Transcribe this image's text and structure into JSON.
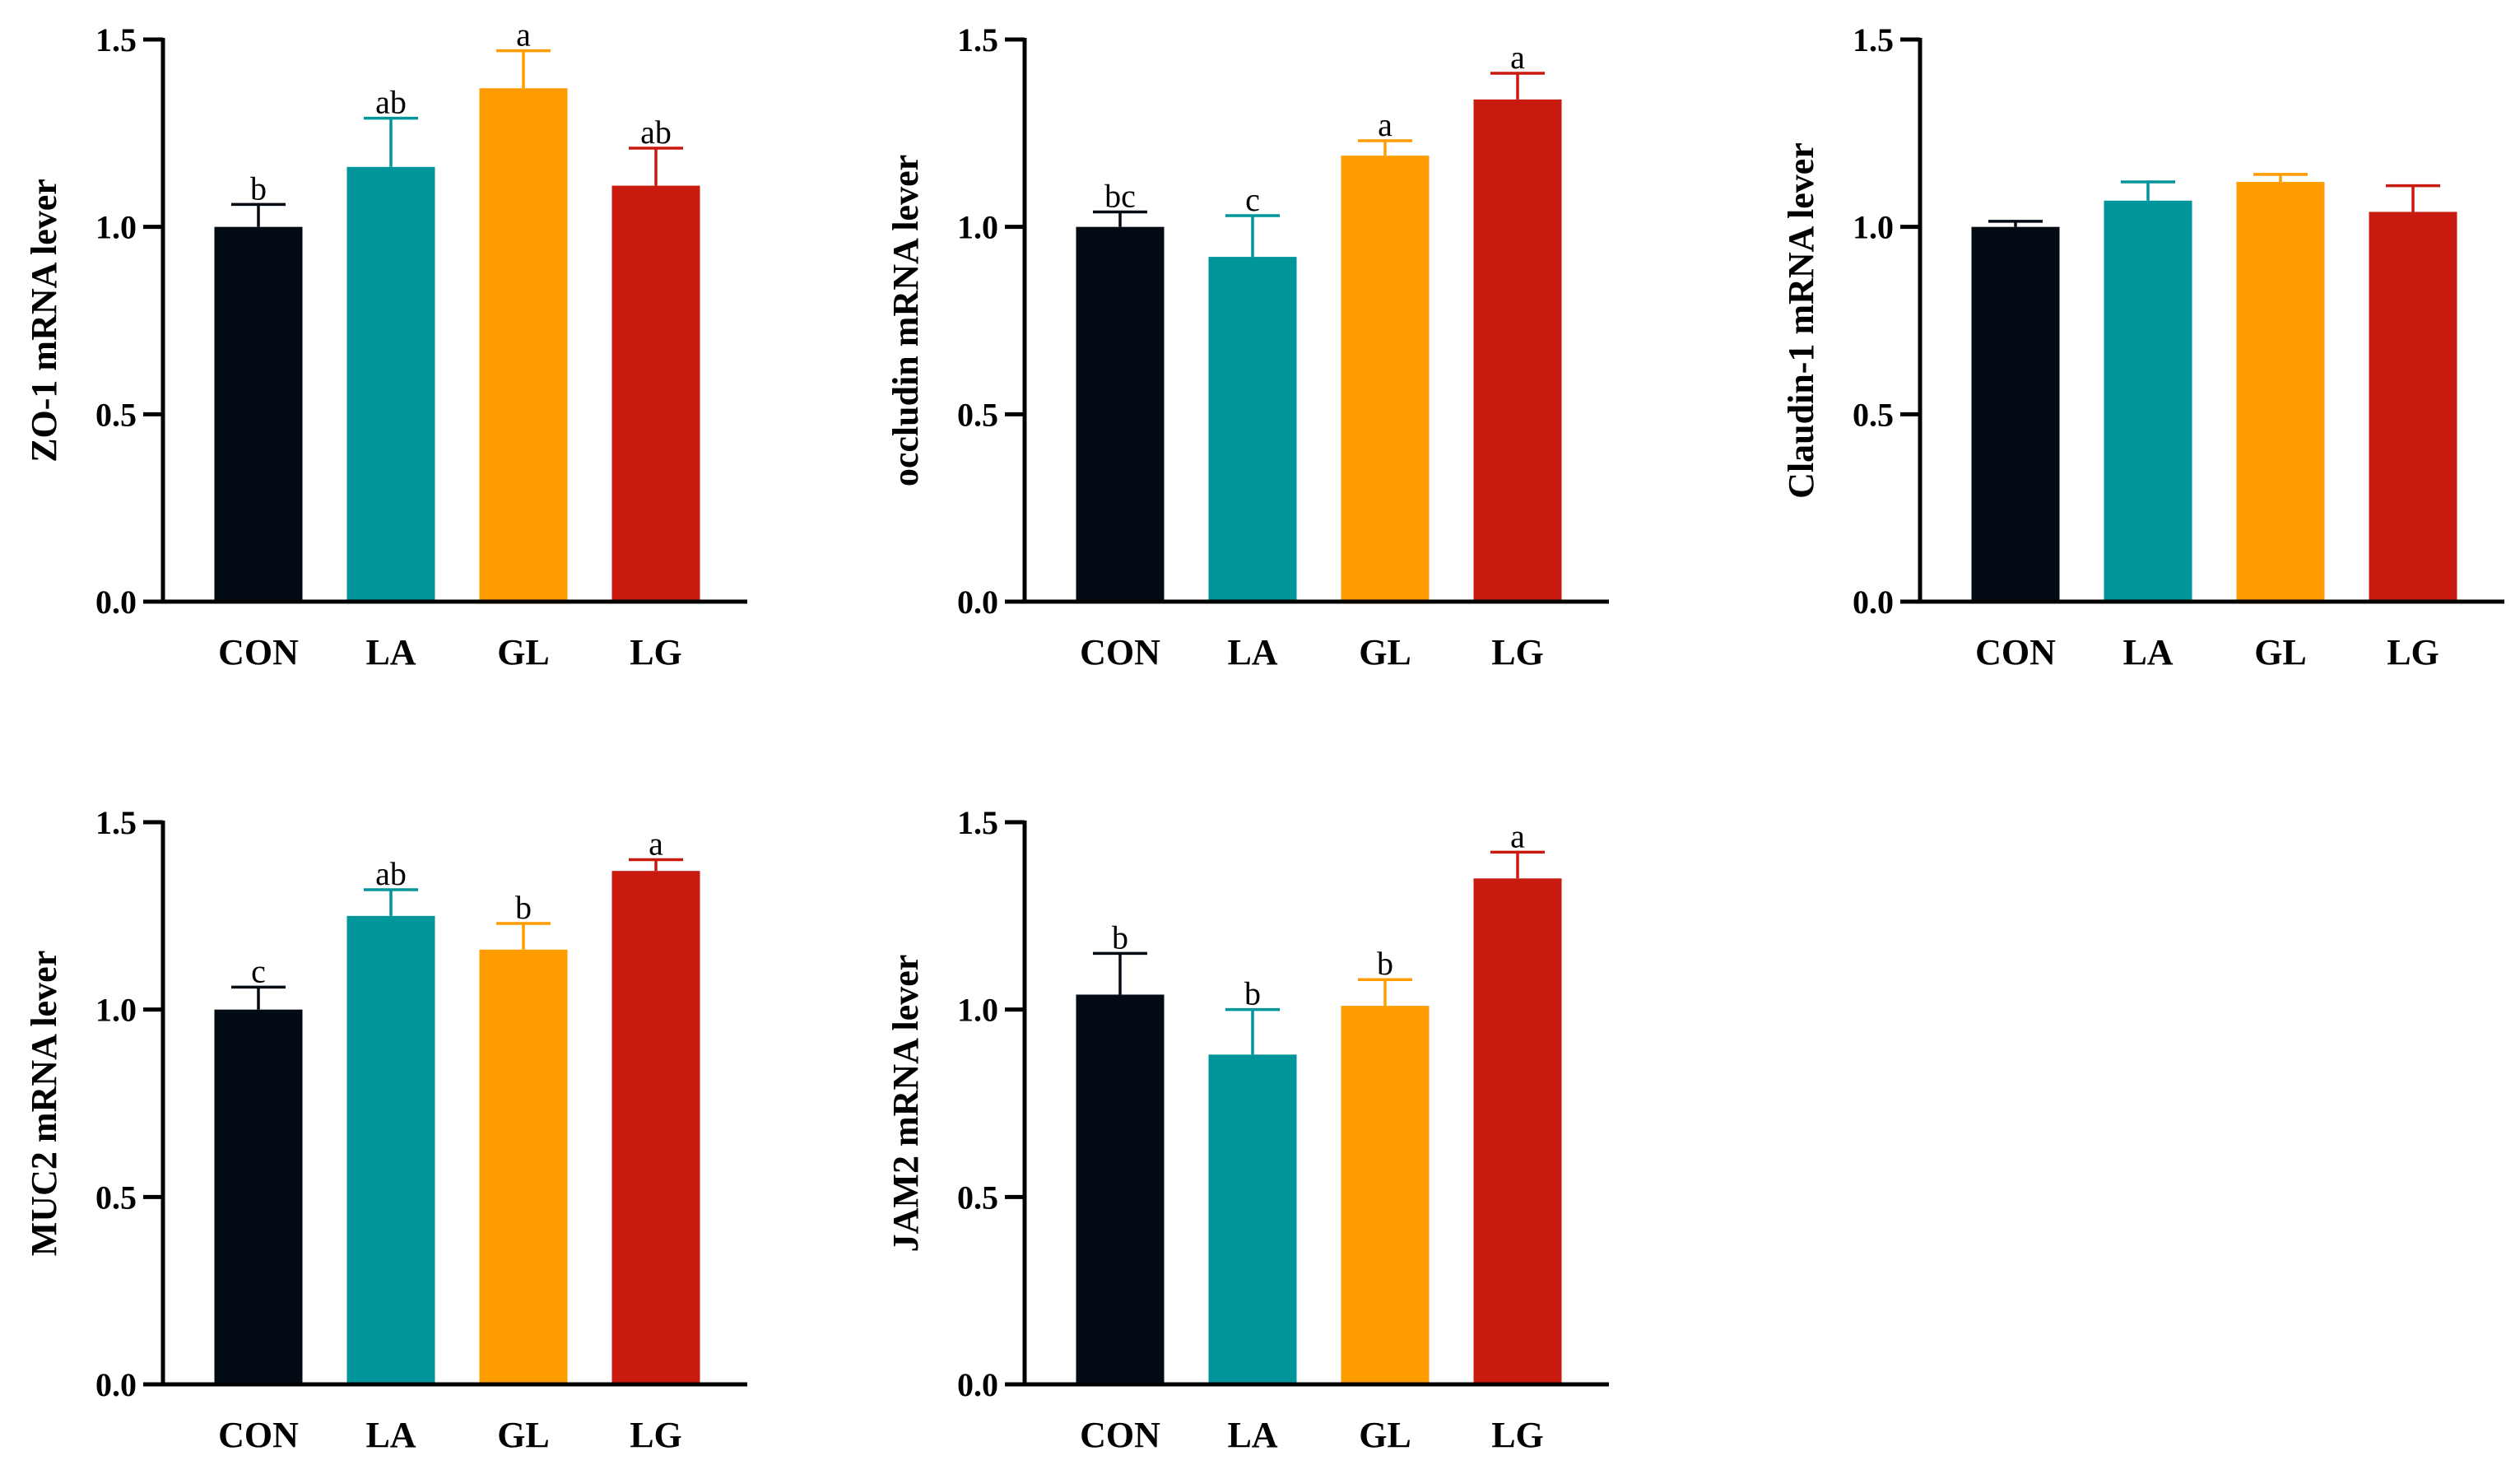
{
  "chart_data": [
    {
      "type": "bar",
      "ylabel": "ZO-1 mRNA lever",
      "categories": [
        "CON",
        "LA",
        "GL",
        "LG"
      ],
      "values": [
        1.0,
        1.16,
        1.37,
        1.11
      ],
      "errors": [
        0.06,
        0.13,
        0.1,
        0.1
      ],
      "letters": [
        "b",
        "ab",
        "a",
        "ab"
      ],
      "ylim": [
        0,
        1.5
      ],
      "yticks": [
        "0.0",
        "0.5",
        "1.0",
        "1.5"
      ],
      "colors": [
        "#020b13",
        "#00959a",
        "#ff9c00",
        "#c81a0e"
      ]
    },
    {
      "type": "bar",
      "ylabel": "occludin mRNA lever",
      "categories": [
        "CON",
        "LA",
        "GL",
        "LG"
      ],
      "values": [
        1.0,
        0.92,
        1.19,
        1.34
      ],
      "errors": [
        0.04,
        0.11,
        0.04,
        0.07
      ],
      "letters": [
        "bc",
        "c",
        "a",
        "a"
      ],
      "ylim": [
        0,
        1.5
      ],
      "yticks": [
        "0.0",
        "0.5",
        "1.0",
        "1.5"
      ],
      "colors": [
        "#020b13",
        "#00959a",
        "#ff9c00",
        "#c81a0e"
      ]
    },
    {
      "type": "bar",
      "ylabel": "Claudin-1 mRNA lever",
      "categories": [
        "CON",
        "LA",
        "GL",
        "LG"
      ],
      "values": [
        1.0,
        1.07,
        1.12,
        1.04
      ],
      "errors": [
        0.015,
        0.05,
        0.02,
        0.07
      ],
      "letters": [
        "",
        "",
        "",
        ""
      ],
      "ylim": [
        0,
        1.5
      ],
      "yticks": [
        "0.0",
        "0.5",
        "1.0",
        "1.5"
      ],
      "colors": [
        "#020b13",
        "#00959a",
        "#ff9c00",
        "#c81a0e"
      ]
    },
    {
      "type": "bar",
      "ylabel": "MUC2 mRNA lever",
      "categories": [
        "CON",
        "LA",
        "GL",
        "LG"
      ],
      "values": [
        1.0,
        1.25,
        1.16,
        1.37
      ],
      "errors": [
        0.06,
        0.07,
        0.07,
        0.03
      ],
      "letters": [
        "c",
        "ab",
        "b",
        "a"
      ],
      "ylim": [
        0,
        1.5
      ],
      "yticks": [
        "0.0",
        "0.5",
        "1.0",
        "1.5"
      ],
      "colors": [
        "#020b13",
        "#00959a",
        "#ff9c00",
        "#c81a0e"
      ]
    },
    {
      "type": "bar",
      "ylabel": "JAM2 mRNA lever",
      "categories": [
        "CON",
        "LA",
        "GL",
        "LG"
      ],
      "values": [
        1.04,
        0.88,
        1.01,
        1.35
      ],
      "errors": [
        0.11,
        0.12,
        0.07,
        0.07
      ],
      "letters": [
        "b",
        "b",
        "b",
        "a"
      ],
      "ylim": [
        0,
        1.5
      ],
      "yticks": [
        "0.0",
        "0.5",
        "1.0",
        "1.5"
      ],
      "colors": [
        "#020b13",
        "#00959a",
        "#ff9c00",
        "#c81a0e"
      ]
    }
  ]
}
